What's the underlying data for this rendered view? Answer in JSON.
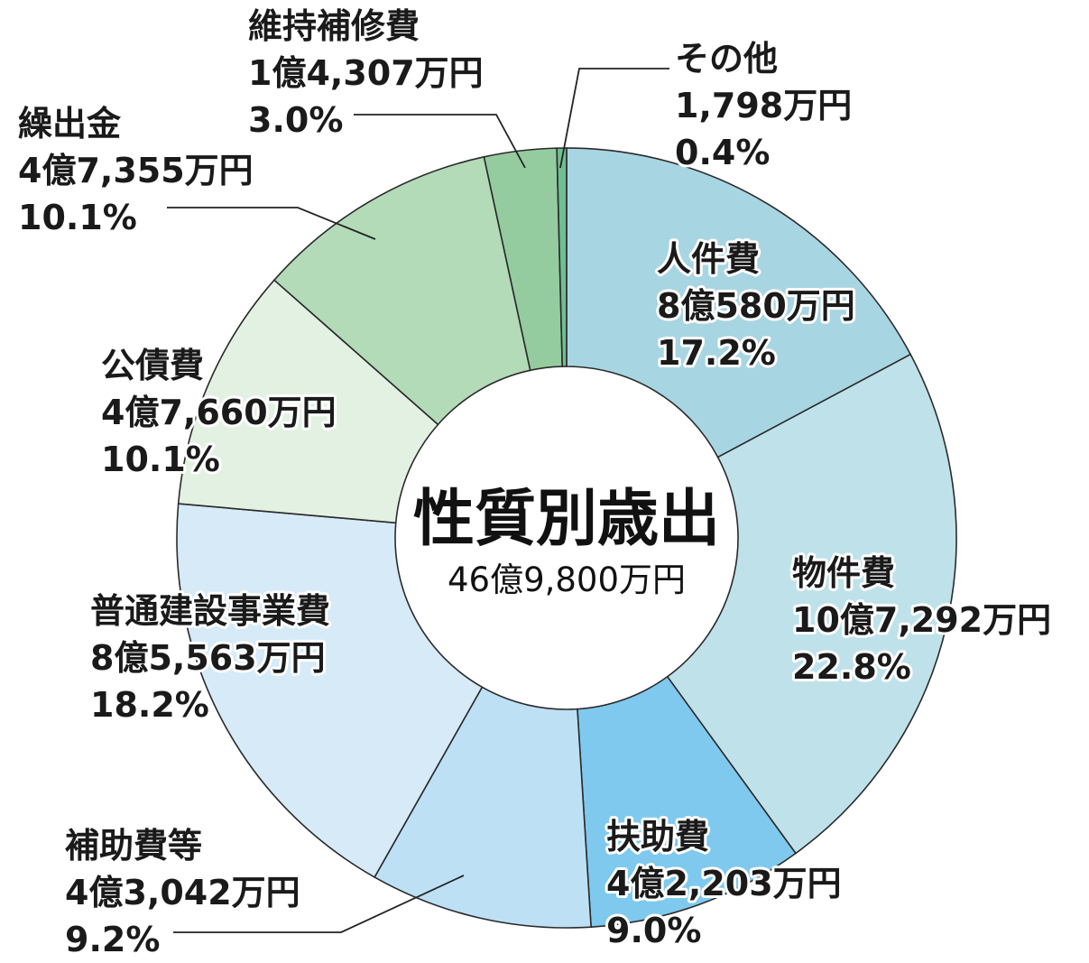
{
  "chart_data": {
    "type": "pie",
    "title": "性質別歳出",
    "total": "46億9,800万円",
    "slices": [
      {
        "name": "人件費",
        "amount": "8億580万円",
        "percent_label": "17.2%",
        "value": 17.2,
        "color": "#a8d5e2"
      },
      {
        "name": "物件費",
        "amount": "10億7,292万円",
        "percent_label": "22.8%",
        "value": 22.8,
        "color": "#bfe2ea"
      },
      {
        "name": "扶助費",
        "amount": "4億2,203万円",
        "percent_label": "9.0%",
        "value": 9.0,
        "color": "#7fc9ef"
      },
      {
        "name": "補助費等",
        "amount": "4億3,042万円",
        "percent_label": "9.2%",
        "value": 9.2,
        "color": "#bde0f5"
      },
      {
        "name": "普通建設事業費",
        "amount": "8億5,563万円",
        "percent_label": "18.2%",
        "value": 18.2,
        "color": "#d6eaf8"
      },
      {
        "name": "公債費",
        "amount": "4億7,660万円",
        "percent_label": "10.1%",
        "value": 10.1,
        "color": "#e3f1e3"
      },
      {
        "name": "繰出金",
        "amount": "4億7,355万円",
        "percent_label": "10.1%",
        "value": 10.1,
        "color": "#b3dbb8"
      },
      {
        "name": "維持補修費",
        "amount": "1億4,307万円",
        "percent_label": "3.0%",
        "value": 3.0,
        "color": "#95cc9f"
      },
      {
        "name": "その他",
        "amount": "1,798万円",
        "percent_label": "0.4%",
        "value": 0.4,
        "color": "#6fbf92"
      }
    ]
  }
}
